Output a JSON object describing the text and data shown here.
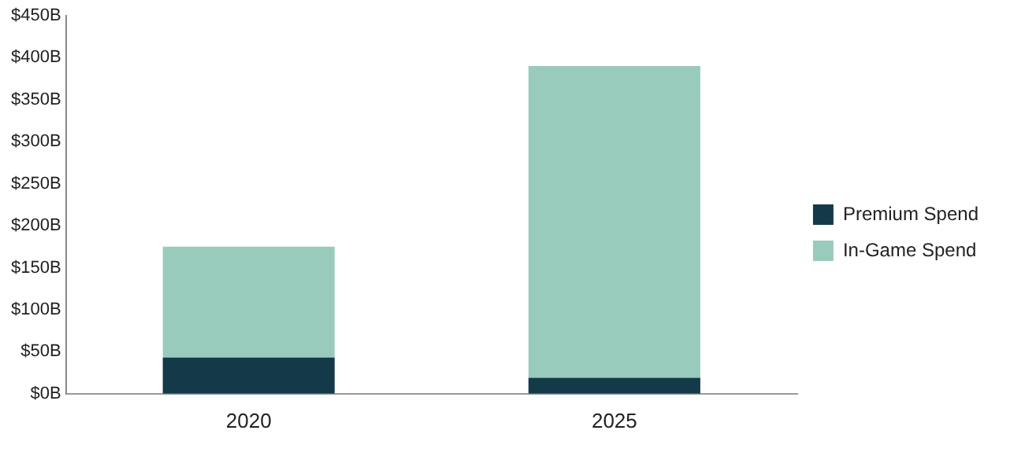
{
  "chart_data": {
    "type": "bar",
    "stacked": true,
    "categories": [
      "2020",
      "2025"
    ],
    "series": [
      {
        "name": "Premium Spend",
        "color": "#143a4a",
        "values": [
          43,
          19
        ]
      },
      {
        "name": "In-Game Spend",
        "color": "#99cbbc",
        "values": [
          132,
          371
        ]
      }
    ],
    "ylim": [
      0,
      450
    ],
    "yticks": [
      {
        "value": 0,
        "label": "$0B"
      },
      {
        "value": 50,
        "label": "$50B"
      },
      {
        "value": 100,
        "label": "$100B"
      },
      {
        "value": 150,
        "label": "$150B"
      },
      {
        "value": 200,
        "label": "$200B"
      },
      {
        "value": 250,
        "label": "$250B"
      },
      {
        "value": 300,
        "label": "$300B"
      },
      {
        "value": 350,
        "label": "$350B"
      },
      {
        "value": 400,
        "label": "$400B"
      },
      {
        "value": 450,
        "label": "$450B"
      }
    ],
    "grid": false,
    "legend": "right"
  }
}
